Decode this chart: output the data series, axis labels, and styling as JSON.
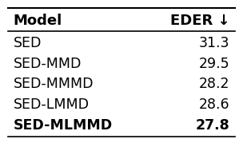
{
  "headers": [
    "Model",
    "EDER ↓"
  ],
  "rows": [
    [
      "SED",
      "31.3"
    ],
    [
      "SED-MMD",
      "29.5"
    ],
    [
      "SED-MMMD",
      "28.2"
    ],
    [
      "SED-LMMD",
      "28.6"
    ],
    [
      "SED-MLMMD",
      "27.8"
    ]
  ],
  "bold_last_row": true,
  "background_color": "#ffffff",
  "text_color": "#000000",
  "header_fontsize": 13,
  "cell_fontsize": 12.5
}
